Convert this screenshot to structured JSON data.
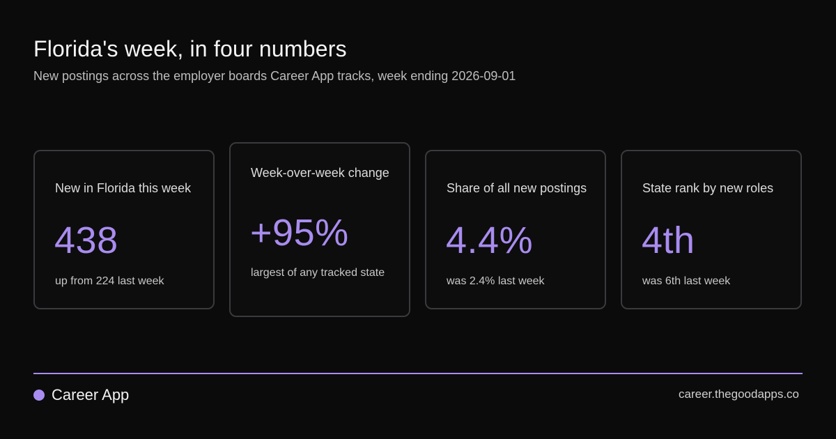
{
  "header": {
    "title": "Florida's week, in four numbers",
    "subtitle": "New postings across the employer boards Career App tracks, week ending 2026-09-01"
  },
  "cards": [
    {
      "label": "New in Florida this week",
      "value": "438",
      "note": "up from 224 last week"
    },
    {
      "label": "Week-over-week change",
      "value": "+95%",
      "note": "largest of any tracked state"
    },
    {
      "label": "Share of all new postings",
      "value": "4.4%",
      "note": "was 2.4% last week"
    },
    {
      "label": "State rank by new roles",
      "value": "4th",
      "note": "was 6th last week"
    }
  ],
  "footer": {
    "brand": "Career App",
    "site": "career.thegoodapps.co"
  },
  "colors": {
    "accent": "#a98cf0",
    "background": "#0b0b0b",
    "card_border": "#3a3a3e"
  }
}
